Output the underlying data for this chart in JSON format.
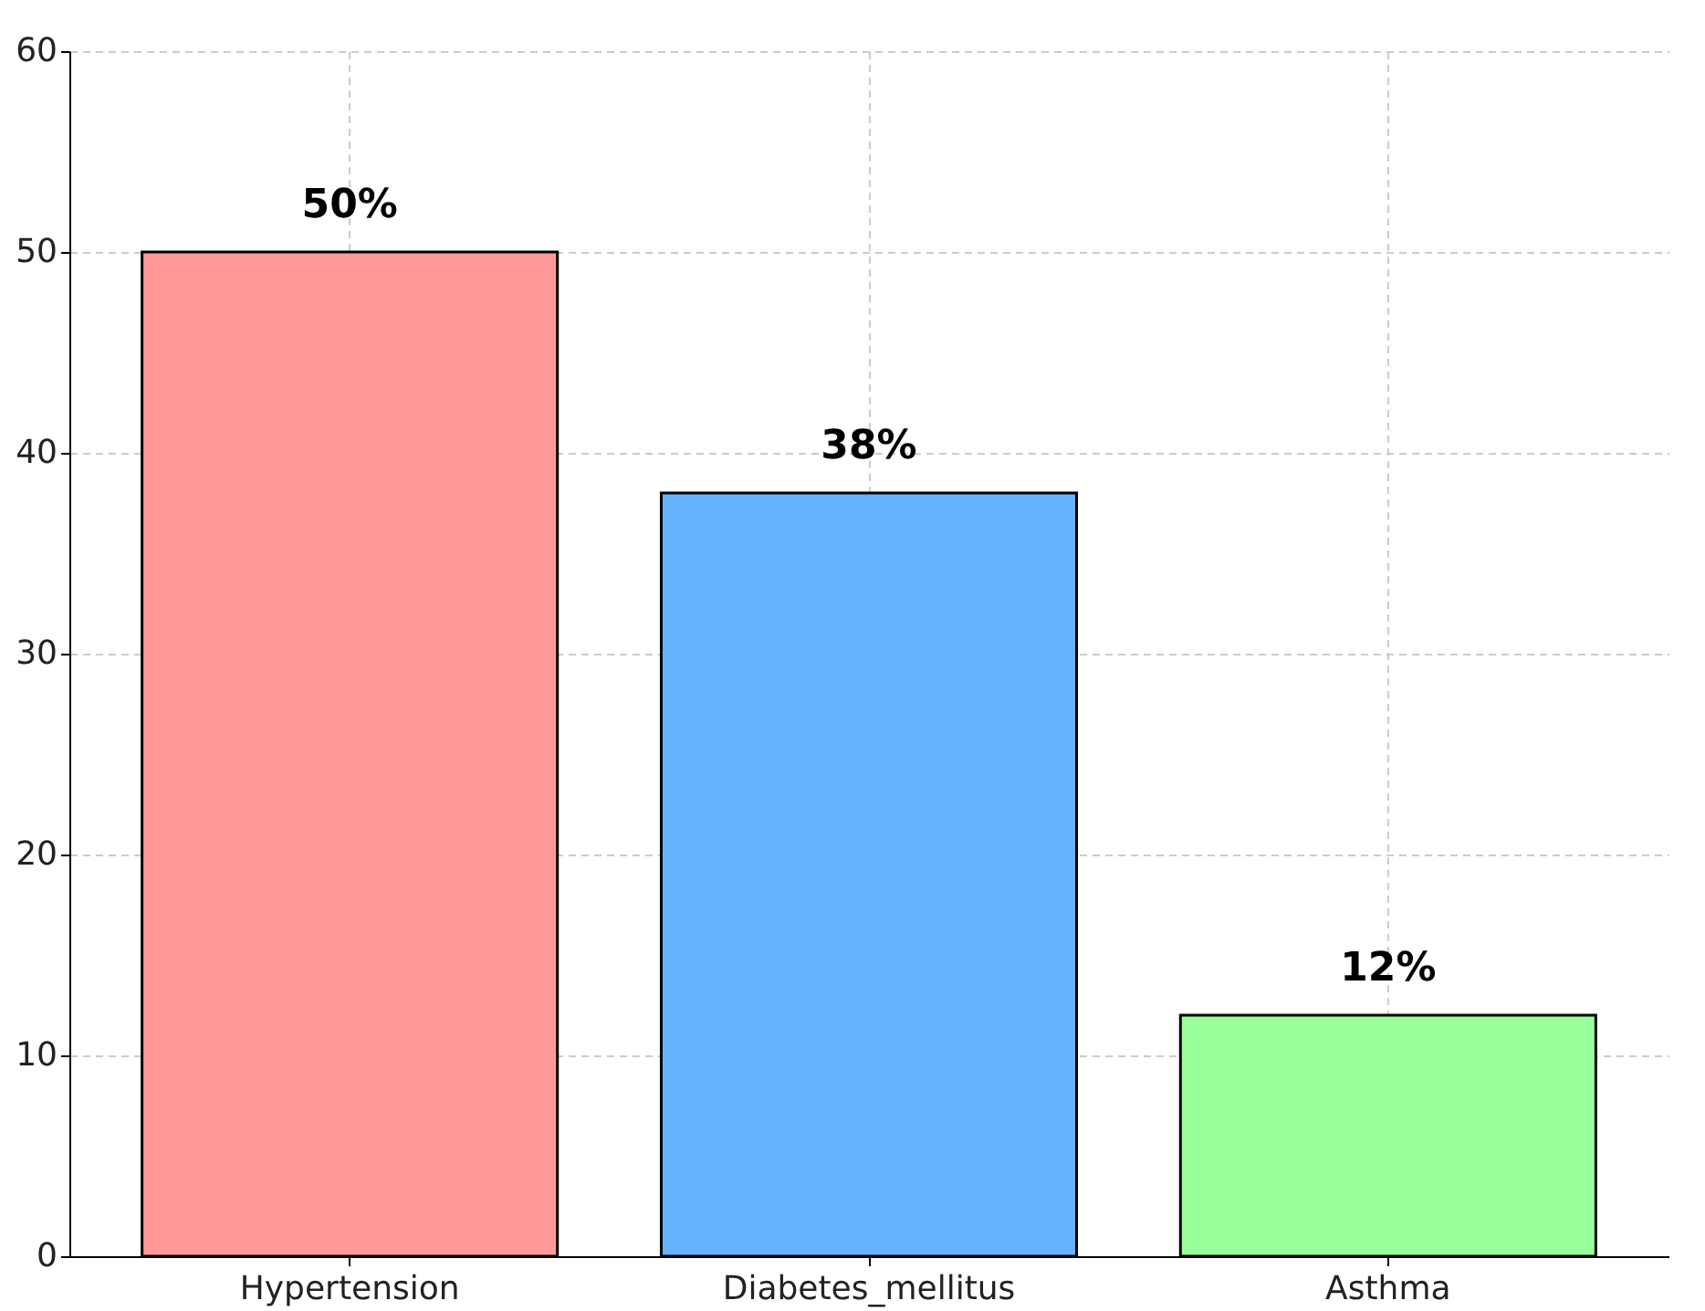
{
  "chart_data": {
    "type": "bar",
    "categories": [
      "Hypertension",
      "Diabetes_mellitus",
      "Asthma"
    ],
    "values": [
      50,
      38,
      12
    ],
    "colors": [
      "#ff9999",
      "#66b3ff",
      "#99ff99"
    ],
    "value_labels": [
      "50%",
      "38%",
      "12%"
    ],
    "ylim": [
      0,
      60
    ],
    "yticks": [
      0,
      10,
      20,
      30,
      40,
      50,
      60
    ],
    "grid": true
  }
}
